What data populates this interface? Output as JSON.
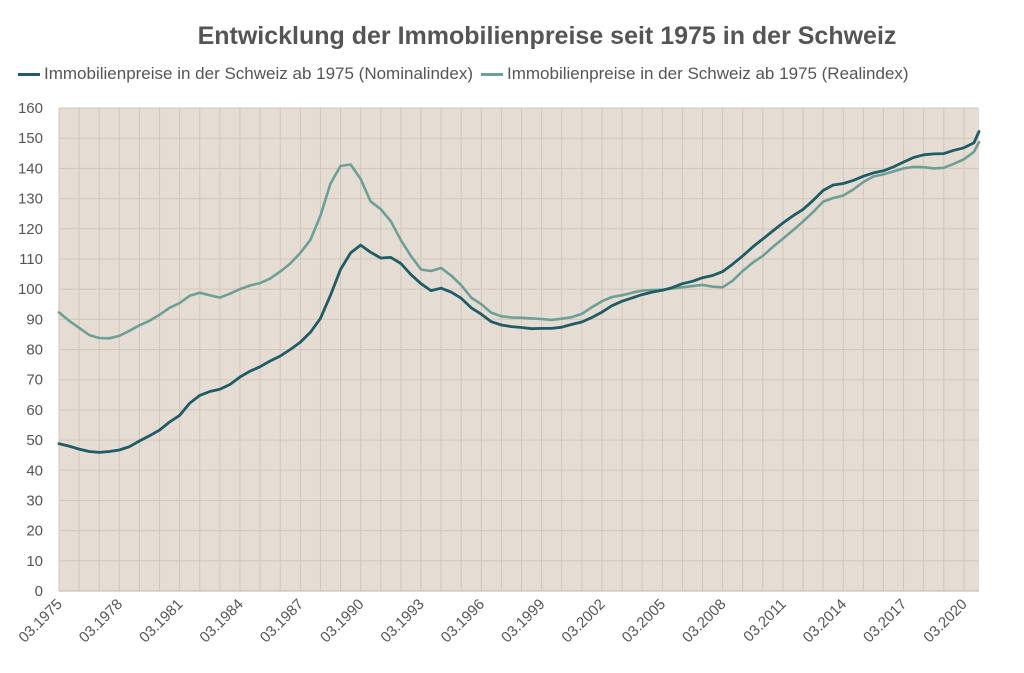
{
  "chart_data": {
    "type": "line",
    "title": "Entwicklung der Immobilienpreise seit 1975 in der Schweiz",
    "xlabel": "",
    "ylabel": "",
    "ylim": [
      0,
      160
    ],
    "y_ticks": [
      0,
      10,
      20,
      30,
      40,
      50,
      60,
      70,
      80,
      90,
      100,
      110,
      120,
      130,
      140,
      150,
      160
    ],
    "x_range": [
      1975.0,
      2020.75
    ],
    "x_ticks": [
      {
        "x": 1975,
        "label": "03.1975"
      },
      {
        "x": 1978,
        "label": "03.1978"
      },
      {
        "x": 1981,
        "label": "03.1981"
      },
      {
        "x": 1984,
        "label": "03.1984"
      },
      {
        "x": 1987,
        "label": "03.1987"
      },
      {
        "x": 1990,
        "label": "03.1990"
      },
      {
        "x": 1993,
        "label": "03.1993"
      },
      {
        "x": 1996,
        "label": "03.1996"
      },
      {
        "x": 1999,
        "label": "03.1999"
      },
      {
        "x": 2002,
        "label": "03.2002"
      },
      {
        "x": 2005,
        "label": "03.2005"
      },
      {
        "x": 2008,
        "label": "03.2008"
      },
      {
        "x": 2011,
        "label": "03.2011"
      },
      {
        "x": 2014,
        "label": "03.2014"
      },
      {
        "x": 2017,
        "label": "03.2017"
      },
      {
        "x": 2020,
        "label": "03.2020"
      }
    ],
    "grid": true,
    "legend_position": "top",
    "plot_background": "#e5dcd3",
    "gridline_color": "#d2c6ba",
    "series": [
      {
        "name": "Immobilienpreise in der Schweiz ab 1975 (Nominalindex)",
        "color": "#1f5c65",
        "points": [
          [
            1975.0,
            48.8
          ],
          [
            1975.5,
            48.0
          ],
          [
            1976.0,
            47.0
          ],
          [
            1976.5,
            46.2
          ],
          [
            1977.0,
            45.9
          ],
          [
            1977.5,
            46.2
          ],
          [
            1978.0,
            46.7
          ],
          [
            1978.5,
            47.8
          ],
          [
            1979.0,
            49.7
          ],
          [
            1979.5,
            51.4
          ],
          [
            1980.0,
            53.3
          ],
          [
            1980.5,
            56.0
          ],
          [
            1981.0,
            58.2
          ],
          [
            1981.5,
            62.2
          ],
          [
            1982.0,
            64.8
          ],
          [
            1982.5,
            66.1
          ],
          [
            1983.0,
            66.8
          ],
          [
            1983.5,
            68.4
          ],
          [
            1984.0,
            70.9
          ],
          [
            1984.5,
            72.8
          ],
          [
            1985.0,
            74.3
          ],
          [
            1985.5,
            76.2
          ],
          [
            1986.0,
            77.8
          ],
          [
            1986.5,
            80.0
          ],
          [
            1987.0,
            82.4
          ],
          [
            1987.5,
            85.7
          ],
          [
            1988.0,
            90.3
          ],
          [
            1988.5,
            98.0
          ],
          [
            1989.0,
            106.5
          ],
          [
            1989.5,
            112.0
          ],
          [
            1990.0,
            114.6
          ],
          [
            1990.5,
            112.2
          ],
          [
            1991.0,
            110.3
          ],
          [
            1991.5,
            110.5
          ],
          [
            1992.0,
            108.5
          ],
          [
            1992.5,
            104.8
          ],
          [
            1993.0,
            101.8
          ],
          [
            1993.5,
            99.5
          ],
          [
            1994.0,
            100.3
          ],
          [
            1994.5,
            99.0
          ],
          [
            1995.0,
            97.0
          ],
          [
            1995.5,
            93.8
          ],
          [
            1996.0,
            91.7
          ],
          [
            1996.5,
            89.2
          ],
          [
            1997.0,
            88.1
          ],
          [
            1997.5,
            87.6
          ],
          [
            1998.0,
            87.3
          ],
          [
            1998.5,
            86.9
          ],
          [
            1999.0,
            87.0
          ],
          [
            1999.5,
            87.0
          ],
          [
            2000.0,
            87.4
          ],
          [
            2000.5,
            88.3
          ],
          [
            2001.0,
            89.1
          ],
          [
            2001.5,
            90.6
          ],
          [
            2002.0,
            92.4
          ],
          [
            2002.5,
            94.5
          ],
          [
            2003.0,
            96.0
          ],
          [
            2003.5,
            97.1
          ],
          [
            2004.0,
            98.2
          ],
          [
            2004.5,
            99.0
          ],
          [
            2005.0,
            99.6
          ],
          [
            2005.5,
            100.5
          ],
          [
            2006.0,
            101.8
          ],
          [
            2006.5,
            102.6
          ],
          [
            2007.0,
            103.8
          ],
          [
            2007.5,
            104.5
          ],
          [
            2008.0,
            105.8
          ],
          [
            2008.5,
            108.3
          ],
          [
            2009.0,
            111.0
          ],
          [
            2009.5,
            114.0
          ],
          [
            2010.0,
            116.6
          ],
          [
            2010.5,
            119.3
          ],
          [
            2011.0,
            121.9
          ],
          [
            2011.5,
            124.3
          ],
          [
            2012.0,
            126.4
          ],
          [
            2012.5,
            129.4
          ],
          [
            2013.0,
            132.7
          ],
          [
            2013.5,
            134.5
          ],
          [
            2014.0,
            135.0
          ],
          [
            2014.5,
            136.0
          ],
          [
            2015.0,
            137.4
          ],
          [
            2015.5,
            138.5
          ],
          [
            2016.0,
            139.2
          ],
          [
            2016.5,
            140.5
          ],
          [
            2017.0,
            142.1
          ],
          [
            2017.5,
            143.6
          ],
          [
            2018.0,
            144.5
          ],
          [
            2018.5,
            144.8
          ],
          [
            2019.0,
            144.9
          ],
          [
            2019.5,
            146.0
          ],
          [
            2020.0,
            146.8
          ],
          [
            2020.5,
            148.5
          ],
          [
            2020.75,
            152.2
          ]
        ]
      },
      {
        "name": "Immobilienpreise in der Schweiz ab 1975 (Realindex)",
        "color": "#6d9f96",
        "points": [
          [
            1975.0,
            92.3
          ],
          [
            1975.5,
            89.5
          ],
          [
            1976.0,
            87.2
          ],
          [
            1976.5,
            84.8
          ],
          [
            1977.0,
            83.8
          ],
          [
            1977.5,
            83.7
          ],
          [
            1978.0,
            84.5
          ],
          [
            1978.5,
            86.2
          ],
          [
            1979.0,
            88.0
          ],
          [
            1979.5,
            89.5
          ],
          [
            1980.0,
            91.5
          ],
          [
            1980.5,
            93.8
          ],
          [
            1981.0,
            95.4
          ],
          [
            1981.5,
            97.8
          ],
          [
            1982.0,
            98.8
          ],
          [
            1982.5,
            98.0
          ],
          [
            1983.0,
            97.2
          ],
          [
            1983.5,
            98.5
          ],
          [
            1984.0,
            100.0
          ],
          [
            1984.5,
            101.2
          ],
          [
            1985.0,
            102.0
          ],
          [
            1985.5,
            103.5
          ],
          [
            1986.0,
            105.8
          ],
          [
            1986.5,
            108.5
          ],
          [
            1987.0,
            112.0
          ],
          [
            1987.5,
            116.3
          ],
          [
            1988.0,
            124.3
          ],
          [
            1988.5,
            135.0
          ],
          [
            1989.0,
            140.8
          ],
          [
            1989.5,
            141.3
          ],
          [
            1990.0,
            136.5
          ],
          [
            1990.5,
            129.0
          ],
          [
            1991.0,
            126.5
          ],
          [
            1991.5,
            122.5
          ],
          [
            1992.0,
            116.2
          ],
          [
            1992.5,
            111.0
          ],
          [
            1993.0,
            106.5
          ],
          [
            1993.5,
            106.0
          ],
          [
            1994.0,
            107.0
          ],
          [
            1994.5,
            104.5
          ],
          [
            1995.0,
            101.3
          ],
          [
            1995.5,
            97.2
          ],
          [
            1996.0,
            95.0
          ],
          [
            1996.5,
            92.2
          ],
          [
            1997.0,
            91.0
          ],
          [
            1997.5,
            90.6
          ],
          [
            1998.0,
            90.5
          ],
          [
            1998.5,
            90.3
          ],
          [
            1999.0,
            90.1
          ],
          [
            1999.5,
            89.8
          ],
          [
            2000.0,
            90.2
          ],
          [
            2000.5,
            90.7
          ],
          [
            2001.0,
            91.8
          ],
          [
            2001.5,
            94.0
          ],
          [
            2002.0,
            96.0
          ],
          [
            2002.5,
            97.4
          ],
          [
            2003.0,
            98.0
          ],
          [
            2003.5,
            98.8
          ],
          [
            2004.0,
            99.5
          ],
          [
            2004.5,
            99.7
          ],
          [
            2005.0,
            99.8
          ],
          [
            2005.5,
            100.2
          ],
          [
            2006.0,
            100.6
          ],
          [
            2006.5,
            101.0
          ],
          [
            2007.0,
            101.4
          ],
          [
            2007.5,
            100.8
          ],
          [
            2008.0,
            100.6
          ],
          [
            2008.5,
            102.8
          ],
          [
            2009.0,
            106.0
          ],
          [
            2009.5,
            108.8
          ],
          [
            2010.0,
            111.0
          ],
          [
            2010.5,
            114.0
          ],
          [
            2011.0,
            116.7
          ],
          [
            2011.5,
            119.5
          ],
          [
            2012.0,
            122.4
          ],
          [
            2012.5,
            125.5
          ],
          [
            2013.0,
            129.0
          ],
          [
            2013.5,
            130.2
          ],
          [
            2014.0,
            131.0
          ],
          [
            2014.5,
            133.0
          ],
          [
            2015.0,
            135.5
          ],
          [
            2015.5,
            137.3
          ],
          [
            2016.0,
            138.0
          ],
          [
            2016.5,
            139.0
          ],
          [
            2017.0,
            140.0
          ],
          [
            2017.5,
            140.5
          ],
          [
            2018.0,
            140.4
          ],
          [
            2018.5,
            140.0
          ],
          [
            2019.0,
            140.2
          ],
          [
            2019.5,
            141.5
          ],
          [
            2020.0,
            143.0
          ],
          [
            2020.5,
            145.5
          ],
          [
            2020.75,
            148.7
          ]
        ]
      }
    ]
  }
}
